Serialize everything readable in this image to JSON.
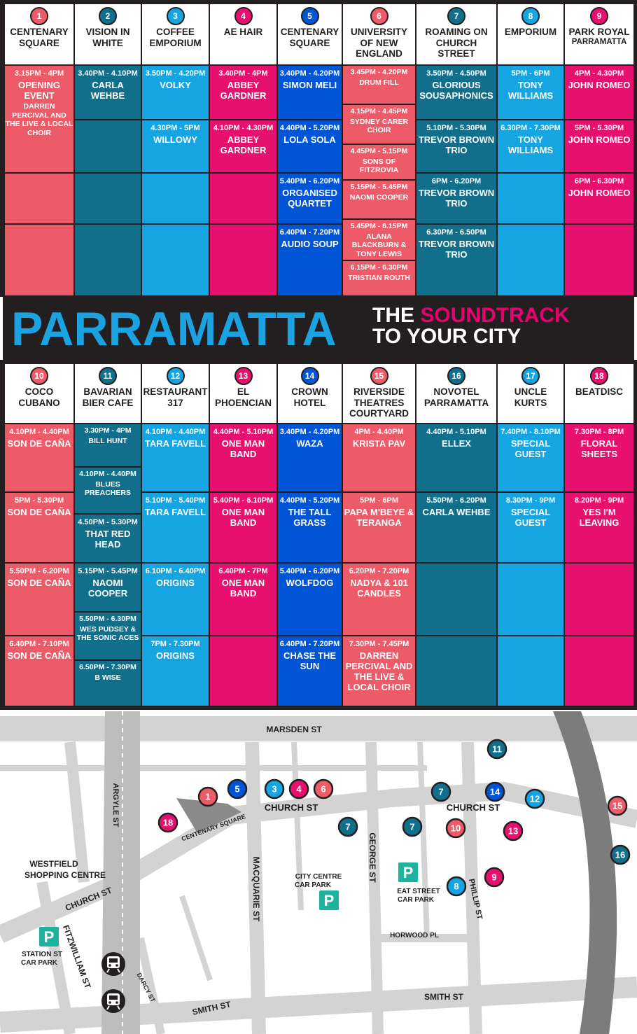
{
  "banner": {
    "title": "PARRAMATTA",
    "tagline_the": "THE",
    "tagline_soundtrack": "SOUNDTRACK",
    "tagline_line2": "TO YOUR CITY"
  },
  "colors": {
    "salmon": "#ee5b68",
    "teal": "#126f8c",
    "cyan": "#16a5e3",
    "magenta": "#e8106f",
    "royal": "#0055d6",
    "dark": "#231f20"
  },
  "top_venues": [
    {
      "num": "1",
      "name": "CENTENARY SQUARE",
      "color": "salmon",
      "cells": [
        {
          "time": "3.15PM - 4PM",
          "act": "OPENING EVENT",
          "extra": "DARREN PERCIVAL AND THE LIVE & LOCAL CHOIR"
        }
      ]
    },
    {
      "num": "2",
      "name": "VISION IN WHITE",
      "color": "teal",
      "cells": [
        {
          "time": "3.40PM - 4.10PM",
          "act": "CARLA WEHBE"
        }
      ]
    },
    {
      "num": "3",
      "name": "COFFEE EMPORIUM",
      "color": "cyan",
      "cells": [
        {
          "time": "3.50PM - 4.20PM",
          "act": "VOLKY"
        },
        {
          "time": "4.30PM - 5PM",
          "act": "WILLOWY"
        }
      ]
    },
    {
      "num": "4",
      "name": "AE HAIR",
      "color": "magenta",
      "cells": [
        {
          "time": "3.40PM - 4PM",
          "act": "ABBEY GARDNER"
        },
        {
          "time": "4.10PM - 4.30PM",
          "act": "ABBEY GARDNER"
        }
      ]
    },
    {
      "num": "5",
      "name": "CENTENARY SQUARE",
      "color": "royal",
      "cells": [
        {
          "time": "3.40PM - 4.20PM",
          "act": "SIMON MELI"
        },
        {
          "time": "4.40PM - 5.20PM",
          "act": "LOLA SOLA"
        },
        {
          "time": "5.40PM - 6.20PM",
          "act": "ORGANISED QUARTET"
        },
        {
          "time": "6.40PM - 7.20PM",
          "act": "AUDIO SOUP"
        }
      ]
    },
    {
      "num": "6",
      "name": "UNIVERSITY OF NEW ENGLAND",
      "color": "salmon",
      "cells": [
        {
          "time": "3.45PM - 4.20PM",
          "act": "DRUM FILL"
        },
        {
          "time": "4.15PM - 4.45PM",
          "act": "SYDNEY CARER CHOIR"
        },
        {
          "time": "4.45PM - 5.15PM",
          "act": "SONS OF FITZROVIA"
        },
        {
          "time": "5.15PM - 5.45PM",
          "act": "NAOMI COOPER"
        },
        {
          "time": "5.45PM - 6.15PM",
          "act": "ALANA BLACKBURN & TONY LEWIS"
        },
        {
          "time": "6.15PM - 6.30PM",
          "act": "TRISTIAN ROUTH"
        }
      ]
    },
    {
      "num": "7",
      "name": "ROAMING ON CHURCH STREET",
      "color": "teal",
      "cells": [
        {
          "time": "3.50PM - 4.50PM",
          "act": "GLORIOUS SOUSAPHONICS"
        },
        {
          "time": "5.10PM - 5.30PM",
          "act": "TREVOR BROWN TRIO"
        },
        {
          "time": "6PM - 6.20PM",
          "act": "TREVOR BROWN TRIO"
        },
        {
          "time": "6.30PM - 6.50PM",
          "act": "TREVOR BROWN TRIO"
        }
      ]
    },
    {
      "num": "8",
      "name": "EMPORIUM",
      "color": "cyan",
      "cells": [
        {
          "time": "5PM - 6PM",
          "act": "TONY WILLIAMS"
        },
        {
          "time": "6.30PM - 7.30PM",
          "act": "TONY WILLIAMS"
        }
      ]
    },
    {
      "num": "9",
      "name": "PARK ROYAL",
      "sub": "PARRAMATTA",
      "color": "magenta",
      "cells": [
        {
          "time": "4PM - 4.30PM",
          "act": "JOHN ROMEO"
        },
        {
          "time": "5PM - 5.30PM",
          "act": "JOHN ROMEO"
        },
        {
          "time": "6PM - 6.30PM",
          "act": "JOHN ROMEO"
        }
      ]
    }
  ],
  "bottom_venues": [
    {
      "num": "10",
      "name": "COCO CUBANO",
      "color": "salmon",
      "cells": [
        {
          "time": "4.10PM - 4.40PM",
          "act": "SON DE CAÑA"
        },
        {
          "time": "5PM - 5.30PM",
          "act": "SON DE CAÑA"
        },
        {
          "time": "5.50PM - 6.20PM",
          "act": "SON DE CAÑA"
        },
        {
          "time": "6.40PM - 7.10PM",
          "act": "SON DE CAÑA"
        }
      ]
    },
    {
      "num": "11",
      "name": "BAVARIAN BIER CAFE",
      "color": "teal",
      "cells": [
        {
          "time": "3.30PM - 4PM",
          "act": "BILL HUNT"
        },
        {
          "time": "4.10PM - 4.40PM",
          "act": "BLUES PREACHERS"
        },
        {
          "time": "4.50PM - 5.30PM",
          "act": "THAT RED HEAD"
        },
        {
          "time": "5.15PM - 5.45PM",
          "act": "NAOMI COOPER"
        },
        {
          "time": "5.50PM - 6.30PM",
          "act": "WES PUDSEY & THE SONIC ACES"
        },
        {
          "time": "6.50PM - 7.30PM",
          "act": "B WISE"
        }
      ]
    },
    {
      "num": "12",
      "name": "RESTAURANT 317",
      "color": "cyan",
      "cells": [
        {
          "time": "4.10PM - 4.40PM",
          "act": "TARA FAVELL"
        },
        {
          "time": "5.10PM - 5.40PM",
          "act": "TARA FAVELL"
        },
        {
          "time": "6.10PM - 6.40PM",
          "act": "ORIGINS"
        },
        {
          "time": "7PM - 7.30PM",
          "act": "ORIGINS"
        }
      ]
    },
    {
      "num": "13",
      "name": "EL PHOENCIAN",
      "color": "magenta",
      "cells": [
        {
          "time": "4.40PM - 5.10PM",
          "act": "ONE MAN BAND"
        },
        {
          "time": "5.40PM - 6.10PM",
          "act": "ONE MAN BAND"
        },
        {
          "time": "6.40PM - 7PM",
          "act": "ONE MAN BAND"
        }
      ]
    },
    {
      "num": "14",
      "name": "CROWN HOTEL",
      "color": "royal",
      "cells": [
        {
          "time": "3.40PM - 4.20PM",
          "act": "WAZA"
        },
        {
          "time": "4.40PM - 5.20PM",
          "act": "THE TALL GRASS"
        },
        {
          "time": "5.40PM - 6.20PM",
          "act": "WOLFDOG"
        },
        {
          "time": "6.40PM - 7.20PM",
          "act": "CHASE THE SUN"
        }
      ]
    },
    {
      "num": "15",
      "name": "RIVERSIDE THEATRES COURTYARD",
      "color": "salmon",
      "cells": [
        {
          "time": "4PM - 4.40PM",
          "act": "KRISTA PAV"
        },
        {
          "time": "5PM - 6PM",
          "act": "PAPA M'BEYE & TERANGA"
        },
        {
          "time": "6.20PM - 7.20PM",
          "act": "NADYA & 101 CANDLES"
        },
        {
          "time": "7.30PM - 7.45PM",
          "act": "DARREN PERCIVAL AND THE LIVE & LOCAL CHOIR"
        }
      ]
    },
    {
      "num": "16",
      "name": "NOVOTEL PARRAMATTA",
      "color": "teal",
      "cells": [
        {
          "time": "4.40PM - 5.10PM",
          "act": "ELLEX"
        },
        {
          "time": "5.50PM - 6.20PM",
          "act": "CARLA WEHBE"
        }
      ]
    },
    {
      "num": "17",
      "name": "UNCLE KURTS",
      "color": "cyan",
      "cells": [
        {
          "time": "7.40PM - 8.10PM",
          "act": "SPECIAL GUEST"
        },
        {
          "time": "8.30PM - 9PM",
          "act": "SPECIAL GUEST"
        }
      ]
    },
    {
      "num": "18",
      "name": "BEATDISC",
      "color": "magenta",
      "cells": [
        {
          "time": "7.30PM - 8PM",
          "act": "FLORAL SHEETS"
        },
        {
          "time": "8.20PM - 9PM",
          "act": "YES I'M LEAVING"
        }
      ]
    }
  ],
  "map": {
    "streets": {
      "marsden": "MARSDEN ST",
      "church_east": "CHURCH ST",
      "church_west": "CHURCH ST",
      "argyle": "ARGYLE ST",
      "macquarie": "MACQUARIE ST",
      "george": "GEORGE ST",
      "phillip": "PHILLIP ST",
      "horwood": "HORWOOD PL",
      "smith_east": "SMITH ST",
      "smith_west": "SMITH ST",
      "fitzwilliam": "FITZWILLIAM ST",
      "darcy": "DARCY ST",
      "centenary": "CENTENARY SQUARE"
    },
    "places": {
      "westfield_l1": "WESTFIELD",
      "westfield_l2": "SHOPPING CENTRE",
      "citycentre_l1": "CITY CENTRE",
      "citycentre_l2": "CAR PARK",
      "eatstreet_l1": "EAT STREET",
      "eatstreet_l2": "CAR PARK",
      "station_l1": "STATION ST",
      "station_l2": "CAR PARK",
      "parking_letter": "P"
    },
    "markers": [
      {
        "num": "1",
        "color": "salmon"
      },
      {
        "num": "5",
        "color": "royal"
      },
      {
        "num": "3",
        "color": "cyan"
      },
      {
        "num": "4",
        "color": "magenta"
      },
      {
        "num": "6",
        "color": "salmon"
      },
      {
        "num": "18",
        "color": "magenta"
      },
      {
        "num": "7",
        "color": "teal"
      },
      {
        "num": "7",
        "color": "teal"
      },
      {
        "num": "7",
        "color": "teal"
      },
      {
        "num": "10",
        "color": "salmon"
      },
      {
        "num": "14",
        "color": "royal"
      },
      {
        "num": "12",
        "color": "cyan"
      },
      {
        "num": "11",
        "color": "teal"
      },
      {
        "num": "13",
        "color": "magenta"
      },
      {
        "num": "15",
        "color": "salmon"
      },
      {
        "num": "16",
        "color": "teal"
      },
      {
        "num": "8",
        "color": "cyan"
      },
      {
        "num": "9",
        "color": "magenta"
      }
    ],
    "icons": [
      "bus-icon",
      "train-icon"
    ]
  }
}
